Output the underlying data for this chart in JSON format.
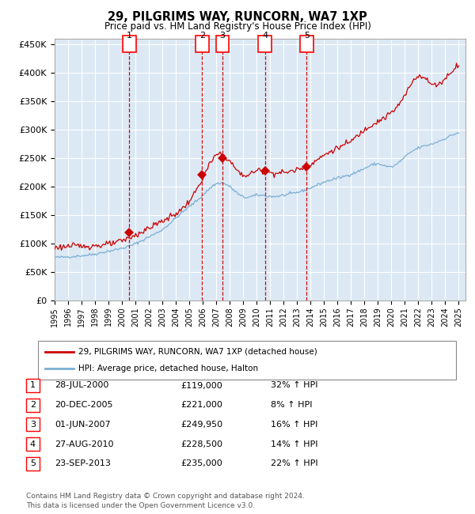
{
  "title": "29, PILGRIMS WAY, RUNCORN, WA7 1XP",
  "subtitle": "Price paid vs. HM Land Registry's House Price Index (HPI)",
  "background_color": "#dce9f5",
  "plot_bg_color": "#dce9f5",
  "hpi_color": "#7bafd4",
  "price_color": "#cc0000",
  "marker_color": "#cc0000",
  "vline_color": "#cc0000",
  "grid_color": "#ffffff",
  "ylim": [
    0,
    460000
  ],
  "yticks": [
    0,
    50000,
    100000,
    150000,
    200000,
    250000,
    300000,
    350000,
    400000,
    450000
  ],
  "x_start_year": 1995,
  "x_end_year": 2025,
  "transactions": [
    {
      "num": 1,
      "date": "2000-07-28",
      "price": 119000,
      "label": "28-JUL-2000",
      "pct": "32%",
      "dir": "↑"
    },
    {
      "num": 2,
      "date": "2005-12-20",
      "price": 221000,
      "label": "20-DEC-2005",
      "pct": "8%",
      "dir": "↑"
    },
    {
      "num": 3,
      "date": "2007-06-01",
      "price": 249950,
      "label": "01-JUN-2007",
      "pct": "16%",
      "dir": "↑"
    },
    {
      "num": 4,
      "date": "2010-08-27",
      "price": 228500,
      "label": "27-AUG-2010",
      "pct": "14%",
      "dir": "↑"
    },
    {
      "num": 5,
      "date": "2013-09-23",
      "price": 235000,
      "label": "23-SEP-2013",
      "pct": "22%",
      "dir": "↑"
    }
  ],
  "legend_line1": "29, PILGRIMS WAY, RUNCORN, WA7 1XP (detached house)",
  "legend_line2": "HPI: Average price, detached house, Halton",
  "footer_line1": "Contains HM Land Registry data © Crown copyright and database right 2024.",
  "footer_line2": "This data is licensed under the Open Government Licence v3.0."
}
